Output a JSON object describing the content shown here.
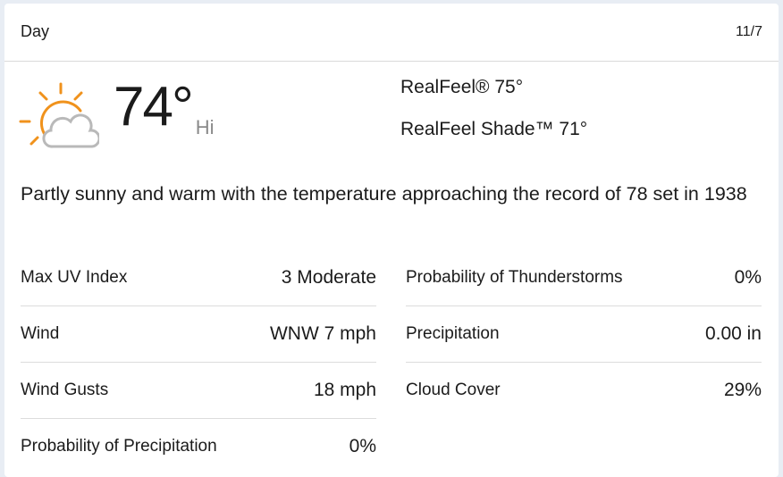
{
  "header": {
    "title": "Day",
    "date": "11/7"
  },
  "current": {
    "icon": "partly-sunny-icon",
    "temperature": "74°",
    "label": "Hi",
    "realfeel": "RealFeel® 75°",
    "realfeel_shade": "RealFeel Shade™ 71°"
  },
  "description": "Partly sunny and warm with the temperature approaching the record of 78 set in 1938",
  "left_details": [
    {
      "label": "Max UV Index",
      "value": "3 Moderate"
    },
    {
      "label": "Wind",
      "value": "WNW 7 mph"
    },
    {
      "label": "Wind Gusts",
      "value": "18 mph"
    },
    {
      "label": "Probability of Precipitation",
      "value": "0%"
    }
  ],
  "right_details": [
    {
      "label": "Probability of Thunderstorms",
      "value": "0%"
    },
    {
      "label": "Precipitation",
      "value": "0.00 in"
    },
    {
      "label": "Cloud Cover",
      "value": "29%"
    }
  ],
  "colors": {
    "sun": "#f0921c",
    "cloud": "#b9b9b9",
    "background": "#e8edf4"
  }
}
